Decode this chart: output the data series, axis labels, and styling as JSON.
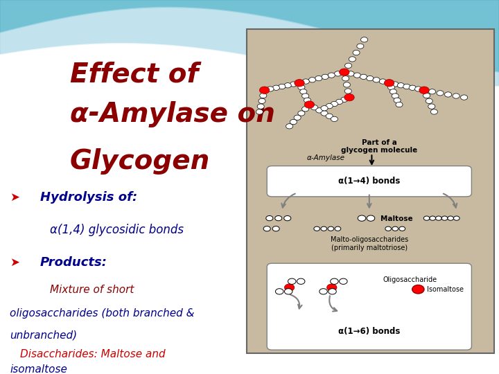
{
  "title_line1": "Effect of",
  "title_line2": "α-Amylase on",
  "title_line3": "Glycogen",
  "title_color": "#8B0000",
  "title_fontsize": 28,
  "bg_top_color": "#5BB8CC",
  "bg_mid_color": "#A8D8E8",
  "bullet_color": "#00008B",
  "bullet_marker_color": "#CC0000",
  "red_text_color": "#8B0000",
  "diagram_bg": "#C8BAA0",
  "diagram_border": "#666666"
}
